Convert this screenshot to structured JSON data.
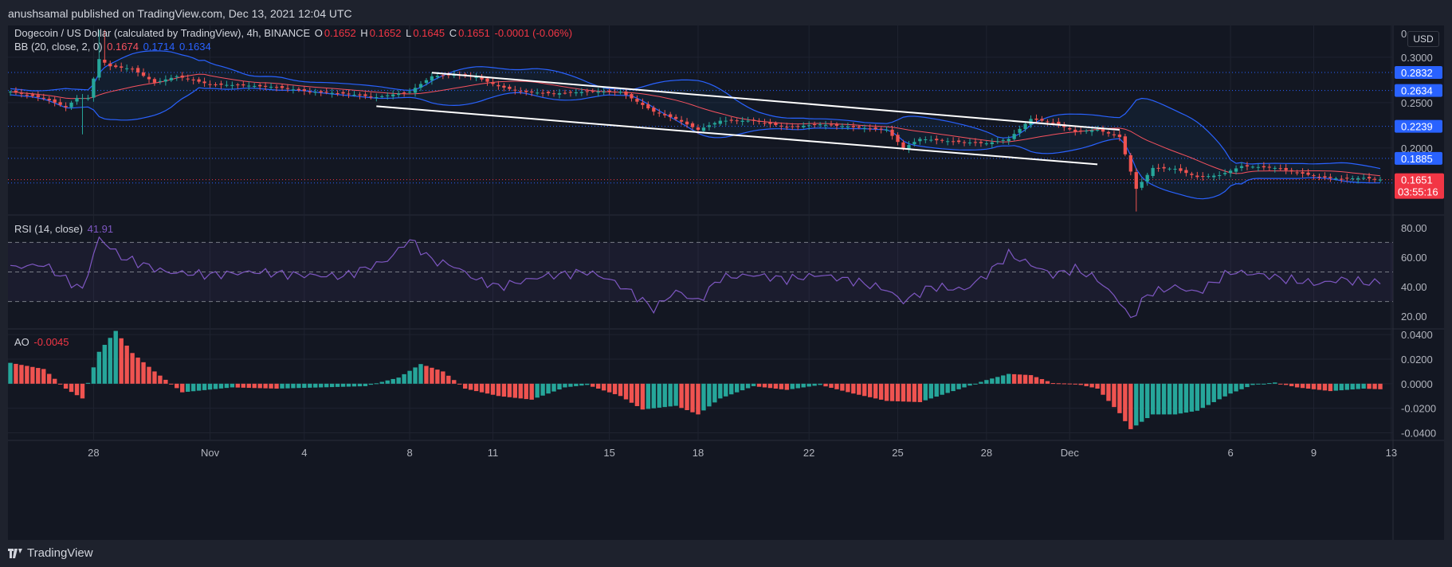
{
  "header": {
    "published_text": "anushsamal published on TradingView.com, Dec 13, 2021 12:04 UTC"
  },
  "footer": {
    "logo_text": "TradingView"
  },
  "price_pane": {
    "symbol_title": "Dogecoin / US Dollar (calculated by TradingView), 4h, BINANCE",
    "ohlc": {
      "o_label": "O",
      "o": "0.1652",
      "h_label": "H",
      "h": "0.1652",
      "l_label": "L",
      "l": "0.1645",
      "c_label": "C",
      "c": "0.1651",
      "change": "-0.0001 (-0.06%)"
    },
    "bb_label": "BB (20, close, 2, 0)",
    "bb_values": [
      "0.1674",
      "0.1714",
      "0.1634"
    ],
    "currency": "USD",
    "top_tick": "0.",
    "countdown": "03:55:16"
  },
  "rsi_pane": {
    "label": "RSI (14, close)",
    "value": "41.91"
  },
  "ao_pane": {
    "label": "AO",
    "value": "-0.0045"
  },
  "colors": {
    "up": "#26a69a",
    "down": "#ef5350",
    "bb": "#2962ff",
    "basis": "#f7525f",
    "rsi": "#7e57c2",
    "trendline": "#ffffff",
    "background": "#131722"
  },
  "chart_data": [
    {
      "type": "candlestick",
      "title": "Dogecoin / US Dollar (calculated by TradingView), 4h, BINANCE",
      "x_tick_labels": [
        "28",
        "Nov",
        "4",
        "8",
        "11",
        "15",
        "18",
        "22",
        "25",
        "28",
        "Dec",
        "6",
        "9",
        "13"
      ],
      "y_tick_labels": [
        "0.3000",
        "0.2500",
        "0.2000"
      ],
      "ylim": [
        0.127,
        0.335
      ],
      "horizontal_levels": [
        0.2832,
        0.2634,
        0.2239,
        0.1885,
        0.1651,
        0.1615
      ],
      "series": [
        {
          "name": "close",
          "anchors": [
            [
              0,
              0.262
            ],
            [
              6,
              0.255
            ],
            [
              10,
              0.245
            ],
            [
              12,
              0.255
            ],
            [
              14,
              0.255
            ],
            [
              16,
              0.298
            ],
            [
              18,
              0.29
            ],
            [
              22,
              0.287
            ],
            [
              26,
              0.272
            ],
            [
              30,
              0.279
            ],
            [
              36,
              0.27
            ],
            [
              42,
              0.269
            ],
            [
              48,
              0.267
            ],
            [
              54,
              0.262
            ],
            [
              60,
              0.26
            ],
            [
              66,
              0.256
            ],
            [
              72,
              0.262
            ],
            [
              76,
              0.279
            ],
            [
              80,
              0.281
            ],
            [
              84,
              0.278
            ],
            [
              88,
              0.268
            ],
            [
              92,
              0.262
            ],
            [
              98,
              0.26
            ],
            [
              104,
              0.262
            ],
            [
              110,
              0.262
            ],
            [
              116,
              0.24
            ],
            [
              120,
              0.232
            ],
            [
              124,
              0.22
            ],
            [
              128,
              0.23
            ],
            [
              134,
              0.23
            ],
            [
              140,
              0.223
            ],
            [
              146,
              0.226
            ],
            [
              152,
              0.223
            ],
            [
              158,
              0.22
            ],
            [
              161,
              0.2
            ],
            [
              164,
              0.21
            ],
            [
              170,
              0.207
            ],
            [
              176,
              0.205
            ],
            [
              180,
              0.21
            ],
            [
              184,
              0.232
            ],
            [
              188,
              0.228
            ],
            [
              192,
              0.218
            ],
            [
              196,
              0.22
            ],
            [
              200,
              0.212
            ],
            [
              203,
              0.155
            ],
            [
              206,
              0.178
            ],
            [
              210,
              0.177
            ],
            [
              214,
              0.168
            ],
            [
              218,
              0.17
            ],
            [
              222,
              0.18
            ],
            [
              228,
              0.178
            ],
            [
              232,
              0.173
            ],
            [
              236,
              0.168
            ],
            [
              240,
              0.166
            ],
            [
              244,
              0.167
            ],
            [
              247,
              0.1651
            ]
          ]
        }
      ],
      "trendlines": [
        {
          "from": [
            76,
            0.283
          ],
          "to": [
            200,
            0.22
          ]
        },
        {
          "from": [
            66,
            0.246
          ],
          "to": [
            196,
            0.182
          ]
        }
      ],
      "bollinger": {
        "length": 20,
        "stddev": 2,
        "basis_last": 0.1674,
        "upper_last": 0.1714,
        "lower_last": 0.1634
      }
    },
    {
      "type": "line",
      "title": "RSI (14, close)",
      "y_tick_labels": [
        "80.00",
        "60.00",
        "40.00",
        "20.00"
      ],
      "ylim": [
        12,
        88
      ],
      "bands": [
        70,
        50,
        30
      ],
      "series": [
        {
          "name": "RSI (14, close)",
          "anchors": [
            [
              0,
              53
            ],
            [
              6,
              55
            ],
            [
              10,
              45
            ],
            [
              13,
              38
            ],
            [
              16,
              73
            ],
            [
              20,
              60
            ],
            [
              28,
              50
            ],
            [
              36,
              48
            ],
            [
              44,
              50
            ],
            [
              52,
              48
            ],
            [
              60,
              47
            ],
            [
              68,
              58
            ],
            [
              72,
              72
            ],
            [
              76,
              58
            ],
            [
              80,
              54
            ],
            [
              84,
              45
            ],
            [
              88,
              40
            ],
            [
              96,
              47
            ],
            [
              104,
              50
            ],
            [
              108,
              45
            ],
            [
              112,
              36
            ],
            [
              116,
              25
            ],
            [
              120,
              37
            ],
            [
              124,
              30
            ],
            [
              128,
              46
            ],
            [
              134,
              48
            ],
            [
              140,
              45
            ],
            [
              146,
              48
            ],
            [
              152,
              44
            ],
            [
              158,
              38
            ],
            [
              161,
              30
            ],
            [
              166,
              40
            ],
            [
              172,
              38
            ],
            [
              176,
              48
            ],
            [
              180,
              62
            ],
            [
              184,
              55
            ],
            [
              188,
              48
            ],
            [
              192,
              52
            ],
            [
              196,
              45
            ],
            [
              200,
              30
            ],
            [
              202,
              18
            ],
            [
              205,
              35
            ],
            [
              210,
              40
            ],
            [
              214,
              36
            ],
            [
              220,
              50
            ],
            [
              226,
              48
            ],
            [
              230,
              45
            ],
            [
              236,
              42
            ],
            [
              240,
              45
            ],
            [
              244,
              43
            ],
            [
              247,
              41.91
            ]
          ]
        }
      ]
    },
    {
      "type": "bar",
      "title": "AO",
      "y_tick_labels": [
        "0.0400",
        "0.0200",
        "0.0000",
        "-0.0200",
        "-0.0400"
      ],
      "ylim": [
        -0.0455,
        0.044
      ],
      "series": [
        {
          "name": "AO",
          "anchors": [
            [
              0,
              0.017
            ],
            [
              6,
              0.012
            ],
            [
              10,
              -0.004
            ],
            [
              13,
              -0.012
            ],
            [
              16,
              0.026
            ],
            [
              19,
              0.043
            ],
            [
              22,
              0.025
            ],
            [
              26,
              0.01
            ],
            [
              31,
              -0.007
            ],
            [
              40,
              -0.003
            ],
            [
              48,
              -0.004
            ],
            [
              56,
              -0.003
            ],
            [
              64,
              -0.002
            ],
            [
              70,
              0.005
            ],
            [
              74,
              0.016
            ],
            [
              78,
              0.01
            ],
            [
              82,
              -0.004
            ],
            [
              88,
              -0.01
            ],
            [
              94,
              -0.013
            ],
            [
              100,
              -0.003
            ],
            [
              104,
              -0.001
            ],
            [
              110,
              -0.01
            ],
            [
              114,
              -0.021
            ],
            [
              120,
              -0.018
            ],
            [
              124,
              -0.025
            ],
            [
              128,
              -0.012
            ],
            [
              134,
              -0.002
            ],
            [
              140,
              -0.005
            ],
            [
              146,
              -0.001
            ],
            [
              152,
              -0.008
            ],
            [
              158,
              -0.014
            ],
            [
              164,
              -0.015
            ],
            [
              170,
              -0.006
            ],
            [
              176,
              0.003
            ],
            [
              180,
              0.008
            ],
            [
              184,
              0.007
            ],
            [
              188,
              0.0005
            ],
            [
              192,
              0.0
            ],
            [
              196,
              -0.004
            ],
            [
              200,
              -0.024
            ],
            [
              202,
              -0.037
            ],
            [
              206,
              -0.025
            ],
            [
              210,
              -0.025
            ],
            [
              214,
              -0.022
            ],
            [
              220,
              -0.008
            ],
            [
              224,
              -0.001
            ],
            [
              228,
              0.001
            ],
            [
              232,
              -0.003
            ],
            [
              238,
              -0.006
            ],
            [
              244,
              -0.004
            ],
            [
              247,
              -0.0045
            ]
          ]
        }
      ]
    }
  ]
}
